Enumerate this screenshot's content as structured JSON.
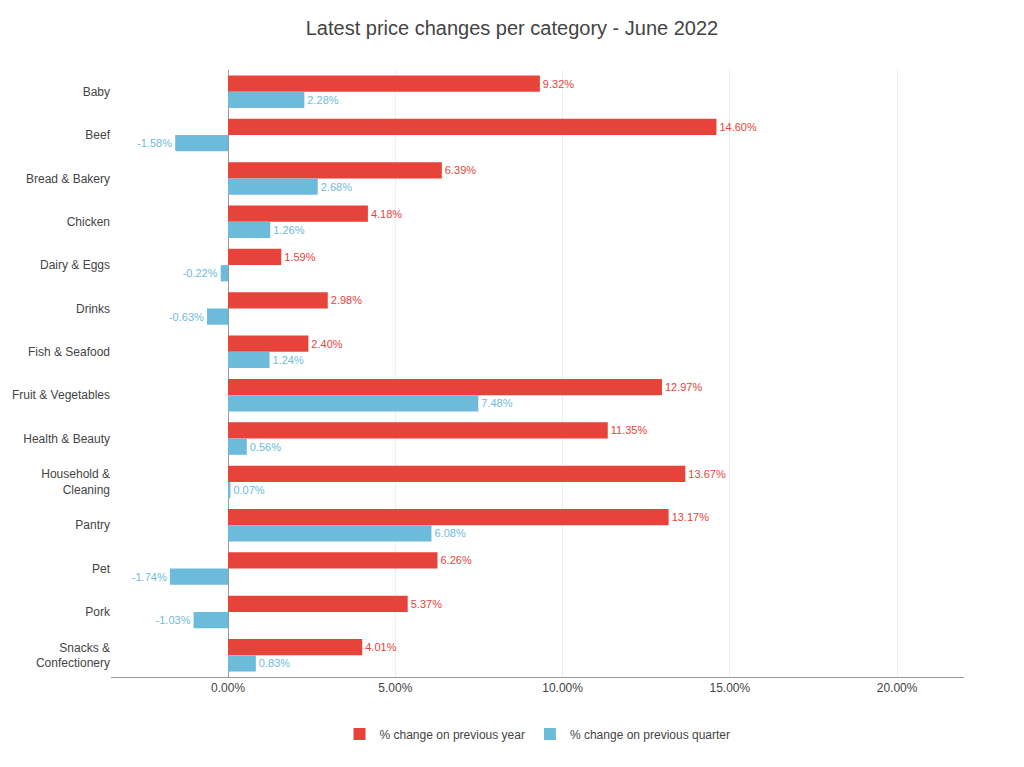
{
  "chart_data": {
    "type": "bar",
    "orientation": "horizontal",
    "title": "Latest price changes per category - June 2022",
    "categories": [
      "Baby",
      "Beef",
      "Bread & Bakery",
      "Chicken",
      "Dairy & Eggs",
      "Drinks",
      "Fish & Seafood",
      "Fruit & Vegetables",
      "Health & Beauty",
      "Household &\nCleaning",
      "Pantry",
      "Pet",
      "Pork",
      "Snacks &\nConfectionery"
    ],
    "series": [
      {
        "name": "% change on previous year",
        "color": "#E8433A",
        "values": [
          9.32,
          14.6,
          6.39,
          4.18,
          1.59,
          2.98,
          2.4,
          12.97,
          11.35,
          13.67,
          13.17,
          6.26,
          5.37,
          4.01
        ],
        "value_labels": [
          "9.32%",
          "14.60%",
          "6.39%",
          "4.18%",
          "1.59%",
          "2.98%",
          "2.40%",
          "12.97%",
          "11.35%",
          "13.67%",
          "13.17%",
          "6.26%",
          "5.37%",
          "4.01%"
        ]
      },
      {
        "name": "% change on previous quarter",
        "color": "#6DBBDB",
        "values": [
          2.28,
          -1.58,
          2.68,
          1.26,
          -0.22,
          -0.63,
          1.24,
          7.48,
          0.56,
          0.07,
          6.08,
          -1.74,
          -1.03,
          0.83
        ],
        "value_labels": [
          "2.28%",
          "-1.58%",
          "2.68%",
          "1.26%",
          "-0.22%",
          "-0.63%",
          "1.24%",
          "7.48%",
          "0.56%",
          "0.07%",
          "6.08%",
          "-1.74%",
          "-1.03%",
          "0.83%"
        ]
      }
    ],
    "xlim": [
      -3.5,
      22
    ],
    "xticks": [
      {
        "value": 0,
        "label": "0.00%"
      },
      {
        "value": 5,
        "label": "5.00%"
      },
      {
        "value": 10,
        "label": "10.00%"
      },
      {
        "value": 15,
        "label": "15.00%"
      },
      {
        "value": 20,
        "label": "20.00%"
      }
    ],
    "grid": true,
    "legend": "bottom",
    "data_labels": true
  }
}
